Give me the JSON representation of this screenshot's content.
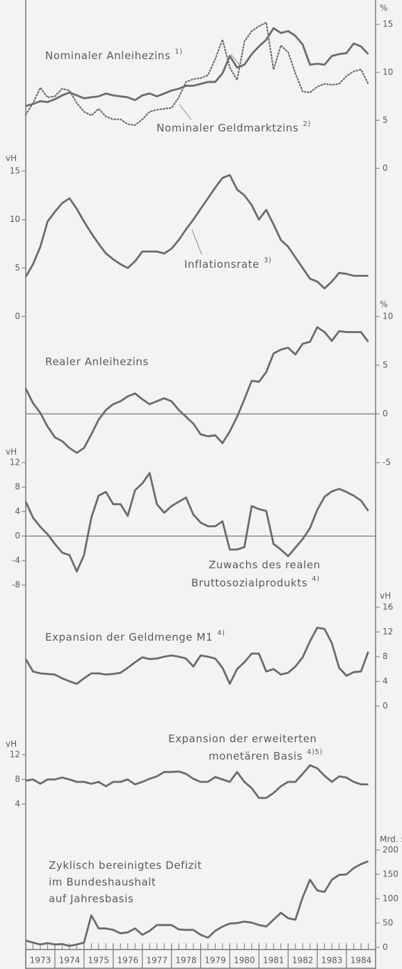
{
  "chart_data": [
    {
      "type": "line",
      "y_label": "%",
      "ylim": [
        0,
        15
      ],
      "yticks": [
        0,
        5,
        10,
        15
      ],
      "x": [
        1973,
        1973.25,
        1973.5,
        1973.75,
        1974,
        1974.25,
        1974.5,
        1974.75,
        1975,
        1975.25,
        1975.5,
        1975.75,
        1976,
        1976.25,
        1976.5,
        1976.75,
        1977,
        1977.25,
        1977.5,
        1977.75,
        1978,
        1978.25,
        1978.5,
        1978.75,
        1979,
        1979.25,
        1979.5,
        1979.75,
        1980,
        1980.25,
        1980.5,
        1980.75,
        1981,
        1981.25,
        1981.5,
        1981.75,
        1982,
        1982.25,
        1982.5,
        1982.75,
        1983,
        1983.25,
        1983.5,
        1983.75,
        1984,
        1984.25,
        1984.5,
        1984.75
      ],
      "series": [
        {
          "label": [
            "Nominaler Anleihezins"
          ],
          "note": "1)",
          "style": "solid",
          "color": "#6b6b6b",
          "values": [
            6.5,
            6.7,
            7.0,
            6.9,
            7.2,
            7.6,
            7.9,
            7.6,
            7.3,
            7.4,
            7.5,
            7.8,
            7.6,
            7.5,
            7.4,
            7.1,
            7.6,
            7.8,
            7.5,
            7.8,
            8.1,
            8.3,
            8.6,
            8.6,
            8.8,
            9.0,
            9.0,
            9.9,
            11.7,
            10.5,
            10.8,
            11.9,
            12.7,
            13.4,
            14.6,
            14.1,
            14.3,
            13.8,
            12.9,
            10.8,
            10.9,
            10.8,
            11.7,
            11.9,
            12.0,
            13.0,
            12.7,
            11.9
          ]
        },
        {
          "label": [
            "Nominaler Geldmarktzins"
          ],
          "note": "2)",
          "style": "dotted",
          "color": "#6b6b6b",
          "values": [
            5.6,
            6.8,
            8.4,
            7.4,
            7.5,
            8.3,
            8.1,
            6.8,
            5.9,
            5.5,
            6.2,
            5.4,
            5.1,
            5.1,
            4.6,
            4.5,
            5.1,
            5.9,
            6.1,
            6.2,
            6.3,
            7.4,
            9.0,
            9.3,
            9.4,
            9.7,
            11.4,
            13.4,
            10.5,
            9.2,
            13.2,
            14.3,
            14.8,
            15.2,
            10.3,
            12.8,
            12.1,
            9.9,
            8.0,
            7.9,
            8.5,
            8.8,
            8.7,
            8.8,
            9.6,
            10.1,
            10.3,
            8.8
          ]
        }
      ]
    },
    {
      "type": "line",
      "y_label": "vH",
      "ylim": [
        0,
        15
      ],
      "yticks": [
        0,
        5,
        10,
        15
      ],
      "x": [
        1973,
        1973.25,
        1973.5,
        1973.75,
        1974,
        1974.25,
        1974.5,
        1974.75,
        1975,
        1975.25,
        1975.5,
        1975.75,
        1976,
        1976.25,
        1976.5,
        1976.75,
        1977,
        1977.25,
        1977.5,
        1977.75,
        1978,
        1978.25,
        1978.5,
        1978.75,
        1979,
        1979.25,
        1979.5,
        1979.75,
        1980,
        1980.25,
        1980.5,
        1980.75,
        1981,
        1981.25,
        1981.5,
        1981.75,
        1982,
        1982.25,
        1982.5,
        1982.75,
        1983,
        1983.25,
        1983.5,
        1983.75,
        1984,
        1984.25,
        1984.5,
        1984.75
      ],
      "series": [
        {
          "label": [
            "Inflationsrate"
          ],
          "note": "3)",
          "style": "solid",
          "color": "#6b6b6b",
          "values": [
            4.1,
            5.4,
            7.2,
            9.8,
            10.8,
            11.7,
            12.2,
            11.1,
            9.8,
            8.6,
            7.5,
            6.5,
            5.9,
            5.4,
            5.0,
            5.7,
            6.7,
            6.7,
            6.7,
            6.5,
            7.0,
            7.9,
            9.0,
            10.0,
            11.1,
            12.2,
            13.3,
            14.3,
            14.6,
            13.1,
            12.5,
            11.5,
            10.0,
            11.0,
            9.5,
            7.9,
            7.2,
            6.1,
            5.0,
            3.9,
            3.6,
            2.9,
            3.6,
            4.5,
            4.4,
            4.2,
            4.2,
            4.2
          ]
        }
      ]
    },
    {
      "type": "line",
      "y_label": "%",
      "ylim": [
        -5,
        10
      ],
      "yticks": [
        -5,
        0,
        5,
        10
      ],
      "zero_line": true,
      "x": [
        1973,
        1973.25,
        1973.5,
        1973.75,
        1974,
        1974.25,
        1974.5,
        1974.75,
        1975,
        1975.25,
        1975.5,
        1975.75,
        1976,
        1976.25,
        1976.5,
        1976.75,
        1977,
        1977.25,
        1977.5,
        1977.75,
        1978,
        1978.25,
        1978.5,
        1978.75,
        1979,
        1979.25,
        1979.5,
        1979.75,
        1980,
        1980.25,
        1980.5,
        1980.75,
        1981,
        1981.25,
        1981.5,
        1981.75,
        1982,
        1982.25,
        1982.5,
        1982.75,
        1983,
        1983.25,
        1983.5,
        1983.75,
        1984,
        1984.25,
        1984.5,
        1984.75
      ],
      "series": [
        {
          "label": [
            "Realer Anleihezins"
          ],
          "style": "solid",
          "color": "#6b6b6b",
          "values": [
            2.6,
            1.1,
            0.1,
            -1.3,
            -2.4,
            -2.8,
            -3.5,
            -4.0,
            -3.5,
            -2.1,
            -0.6,
            0.4,
            1.0,
            1.3,
            1.8,
            2.1,
            1.5,
            1.0,
            1.3,
            1.6,
            1.3,
            0.4,
            -0.3,
            -1.0,
            -2.1,
            -2.3,
            -2.2,
            -3.0,
            -1.8,
            -0.3,
            1.5,
            3.4,
            3.3,
            4.3,
            6.2,
            6.6,
            6.8,
            6.1,
            7.2,
            7.4,
            8.9,
            8.4,
            7.5,
            8.5,
            8.4,
            8.4,
            8.4,
            7.4
          ]
        }
      ]
    },
    {
      "type": "line",
      "y_label": "vH",
      "ylim": [
        -8,
        12
      ],
      "yticks": [
        -8,
        -4,
        0,
        4,
        8,
        12
      ],
      "zero_line": true,
      "x": [
        1973,
        1973.25,
        1973.5,
        1973.75,
        1974,
        1974.25,
        1974.5,
        1974.75,
        1975,
        1975.25,
        1975.5,
        1975.75,
        1976,
        1976.25,
        1976.5,
        1976.75,
        1977,
        1977.25,
        1977.5,
        1977.75,
        1978,
        1978.25,
        1978.5,
        1978.75,
        1979,
        1979.25,
        1979.5,
        1979.75,
        1980,
        1980.25,
        1980.5,
        1980.75,
        1981,
        1981.25,
        1981.5,
        1981.75,
        1982,
        1982.25,
        1982.5,
        1982.75,
        1983,
        1983.25,
        1983.5,
        1983.75,
        1984,
        1984.25,
        1984.5,
        1984.75
      ],
      "series": [
        {
          "label": [
            "Zuwachs des realen",
            "Bruttosozialprodukts"
          ],
          "note": "4)",
          "style": "solid",
          "color": "#6b6b6b",
          "values": [
            5.6,
            3.0,
            1.5,
            0.3,
            -1.3,
            -2.7,
            -3.1,
            -5.8,
            -3.1,
            3.0,
            6.6,
            7.2,
            5.2,
            5.2,
            3.3,
            7.5,
            8.6,
            10.3,
            5.2,
            3.8,
            4.9,
            5.6,
            6.3,
            3.5,
            2.2,
            1.6,
            1.6,
            2.4,
            -2.2,
            -2.2,
            -1.8,
            4.9,
            4.4,
            4.1,
            -1.3,
            -2.2,
            -3.3,
            -1.9,
            -0.5,
            1.3,
            4.3,
            6.4,
            7.3,
            7.7,
            7.2,
            6.6,
            5.8,
            4.1
          ]
        }
      ]
    },
    {
      "type": "line",
      "y_label": "vH",
      "ylim": [
        0,
        16
      ],
      "yticks": [
        0,
        4,
        8,
        12,
        16
      ],
      "x": [
        1973,
        1973.25,
        1973.5,
        1973.75,
        1974,
        1974.25,
        1974.5,
        1974.75,
        1975,
        1975.25,
        1975.5,
        1975.75,
        1976,
        1976.25,
        1976.5,
        1976.75,
        1977,
        1977.25,
        1977.5,
        1977.75,
        1978,
        1978.25,
        1978.5,
        1978.75,
        1979,
        1979.25,
        1979.5,
        1979.75,
        1980,
        1980.25,
        1980.5,
        1980.75,
        1981,
        1981.25,
        1981.5,
        1981.75,
        1982,
        1982.25,
        1982.5,
        1982.75,
        1983,
        1983.25,
        1983.5,
        1983.75,
        1984,
        1984.25,
        1984.5,
        1984.75
      ],
      "series": [
        {
          "label": [
            "Expansion der Geldmenge M1"
          ],
          "note": "4)",
          "style": "solid",
          "color": "#6b6b6b",
          "values": [
            7.6,
            5.6,
            5.3,
            5.2,
            5.1,
            4.5,
            4.0,
            3.6,
            4.5,
            5.3,
            5.3,
            5.1,
            5.2,
            5.4,
            6.2,
            7.1,
            7.9,
            7.6,
            7.7,
            8.0,
            8.2,
            8.0,
            7.7,
            6.4,
            8.2,
            8.0,
            7.7,
            6.2,
            3.6,
            6.0,
            7.1,
            8.5,
            8.5,
            5.6,
            6.0,
            5.1,
            5.4,
            6.4,
            7.9,
            10.5,
            12.7,
            12.5,
            10.2,
            6.2,
            4.9,
            5.5,
            5.6,
            8.8
          ]
        }
      ]
    },
    {
      "type": "line",
      "y_label": "vH",
      "ylim": [
        4,
        12
      ],
      "yticks": [
        4,
        8,
        12
      ],
      "x": [
        1973,
        1973.25,
        1973.5,
        1973.75,
        1974,
        1974.25,
        1974.5,
        1974.75,
        1975,
        1975.25,
        1975.5,
        1975.75,
        1976,
        1976.25,
        1976.5,
        1976.75,
        1977,
        1977.25,
        1977.5,
        1977.75,
        1978,
        1978.25,
        1978.5,
        1978.75,
        1979,
        1979.25,
        1979.5,
        1979.75,
        1980,
        1980.25,
        1980.5,
        1980.75,
        1981,
        1981.25,
        1981.5,
        1981.75,
        1982,
        1982.25,
        1982.5,
        1982.75,
        1983,
        1983.25,
        1983.5,
        1983.75,
        1984,
        1984.25,
        1984.5,
        1984.75
      ],
      "series": [
        {
          "label": [
            "Expansion der erweiterten",
            "monetären Basis"
          ],
          "note": "4)5)",
          "style": "solid",
          "color": "#6b6b6b",
          "values": [
            7.8,
            8.0,
            7.3,
            8.0,
            8.0,
            8.3,
            8.0,
            7.6,
            7.6,
            7.3,
            7.6,
            6.9,
            7.6,
            7.6,
            8.0,
            7.2,
            7.6,
            8.1,
            8.5,
            9.2,
            9.2,
            9.3,
            8.9,
            8.1,
            7.6,
            7.6,
            8.4,
            8.0,
            7.6,
            9.2,
            7.6,
            6.6,
            5.0,
            5.0,
            5.8,
            6.9,
            7.6,
            7.6,
            8.9,
            10.3,
            9.8,
            8.6,
            7.6,
            8.5,
            8.3,
            7.6,
            7.2,
            7.2
          ]
        }
      ]
    },
    {
      "type": "line",
      "y_label": "Mrd. $",
      "ylim": [
        0,
        200
      ],
      "yticks": [
        0,
        50,
        100,
        150,
        200
      ],
      "xlim": [
        1973,
        1985
      ],
      "xticks": [
        {
          "value": 1973.5,
          "label": "1973"
        },
        {
          "value": 1974.5,
          "label": "1974"
        },
        {
          "value": 1975.5,
          "label": "1975"
        },
        {
          "value": 1976.5,
          "label": "1976"
        },
        {
          "value": 1977.5,
          "label": "1977"
        },
        {
          "value": 1978.5,
          "label": "1978"
        },
        {
          "value": 1979.5,
          "label": "1979"
        },
        {
          "value": 1980.5,
          "label": "1980"
        },
        {
          "value": 1981.5,
          "label": "1981"
        },
        {
          "value": 1982.5,
          "label": "1982"
        },
        {
          "value": 1983.5,
          "label": "1983"
        },
        {
          "value": 1984.5,
          "label": "1984"
        }
      ],
      "x": [
        1973,
        1973.25,
        1973.5,
        1973.75,
        1974,
        1974.25,
        1974.5,
        1974.75,
        1975,
        1975.25,
        1975.5,
        1975.75,
        1976,
        1976.25,
        1976.5,
        1976.75,
        1977,
        1977.25,
        1977.5,
        1977.75,
        1978,
        1978.25,
        1978.5,
        1978.75,
        1979,
        1979.25,
        1979.5,
        1979.75,
        1980,
        1980.25,
        1980.5,
        1980.75,
        1981,
        1981.25,
        1981.5,
        1981.75,
        1982,
        1982.25,
        1982.5,
        1982.75,
        1983,
        1983.25,
        1983.5,
        1983.75,
        1984,
        1984.25,
        1984.5,
        1984.75
      ],
      "series": [
        {
          "label": [
            "Zyklisch bereinigtes Defizit",
            "im Bundeshaushalt",
            "auf Jahresbasis"
          ],
          "style": "solid",
          "color": "#6b6b6b",
          "values": [
            14,
            10,
            6,
            9,
            6,
            7,
            3,
            6,
            10,
            66,
            39,
            39,
            36,
            29,
            31,
            39,
            26,
            34,
            46,
            46,
            46,
            37,
            36,
            36,
            26,
            20,
            34,
            43,
            49,
            50,
            53,
            51,
            46,
            43,
            57,
            71,
            60,
            57,
            103,
            139,
            117,
            114,
            139,
            149,
            150,
            163,
            171,
            177
          ]
        }
      ]
    }
  ]
}
